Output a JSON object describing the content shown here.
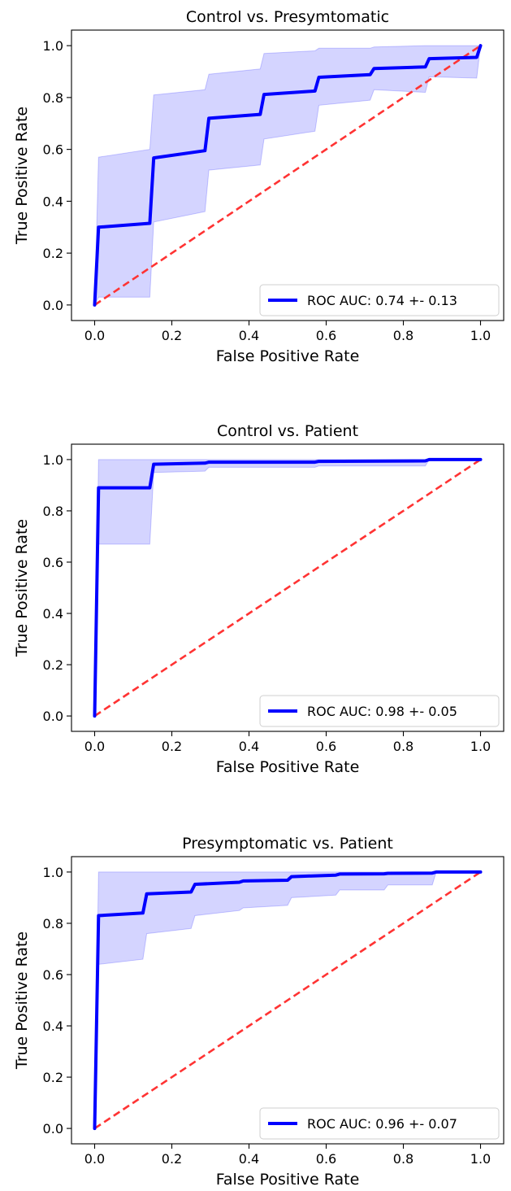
{
  "chart_data": [
    {
      "type": "line",
      "title": "Control vs. Presymtomatic",
      "xlabel": "False Positive Rate",
      "ylabel": "True Positive Rate",
      "xlim": [
        -0.06,
        1.06
      ],
      "ylim": [
        -0.06,
        1.06
      ],
      "xticks": [
        0.0,
        0.2,
        0.4,
        0.6,
        0.8,
        1.0
      ],
      "yticks": [
        0.0,
        0.2,
        0.4,
        0.6,
        0.8,
        1.0
      ],
      "tick_labels": [
        "0.0",
        "0.2",
        "0.4",
        "0.6",
        "0.8",
        "1.0"
      ],
      "legend_position": "lower-right",
      "series": [
        {
          "name": "ROC AUC: 0.74 +- 0.13",
          "color": "#0000ff",
          "x": [
            0.0,
            0.01,
            0.143,
            0.153,
            0.286,
            0.296,
            0.429,
            0.439,
            0.571,
            0.581,
            0.714,
            0.724,
            0.857,
            0.867,
            0.99,
            1.0
          ],
          "y": [
            0.0,
            0.3,
            0.315,
            0.567,
            0.595,
            0.72,
            0.735,
            0.812,
            0.825,
            0.878,
            0.888,
            0.912,
            0.918,
            0.95,
            0.955,
            1.0
          ],
          "band_upper": [
            0.0,
            0.57,
            0.6,
            0.81,
            0.83,
            0.89,
            0.91,
            0.97,
            0.98,
            0.99,
            0.99,
            0.995,
            1.0,
            1.0,
            1.0,
            1.0
          ],
          "band_lower": [
            0.0,
            0.03,
            0.03,
            0.32,
            0.36,
            0.52,
            0.54,
            0.64,
            0.67,
            0.77,
            0.79,
            0.83,
            0.82,
            0.88,
            0.875,
            1.0
          ]
        },
        {
          "name": "",
          "color": "#ff3333",
          "style": "dashed",
          "x": [
            0.0,
            1.0
          ],
          "y": [
            0.0,
            1.0
          ]
        }
      ]
    },
    {
      "type": "line",
      "title": "Control vs. Patient",
      "xlabel": "False Positive Rate",
      "ylabel": "True Positive Rate",
      "xlim": [
        -0.06,
        1.06
      ],
      "ylim": [
        -0.06,
        1.06
      ],
      "xticks": [
        0.0,
        0.2,
        0.4,
        0.6,
        0.8,
        1.0
      ],
      "yticks": [
        0.0,
        0.2,
        0.4,
        0.6,
        0.8,
        1.0
      ],
      "tick_labels": [
        "0.0",
        "0.2",
        "0.4",
        "0.6",
        "0.8",
        "1.0"
      ],
      "legend_position": "lower-right",
      "series": [
        {
          "name": "ROC AUC: 0.98 +- 0.05",
          "color": "#0000ff",
          "x": [
            0.0,
            0.01,
            0.143,
            0.153,
            0.286,
            0.296,
            0.571,
            0.581,
            0.857,
            0.867,
            1.0
          ],
          "y": [
            0.0,
            0.89,
            0.89,
            0.982,
            0.986,
            0.99,
            0.99,
            0.993,
            0.995,
            1.0,
            1.0
          ],
          "band_upper": [
            0.0,
            1.0,
            1.0,
            1.0,
            1.0,
            1.0,
            1.0,
            1.0,
            1.0,
            1.0,
            1.0
          ],
          "band_lower": [
            0.0,
            0.67,
            0.67,
            0.95,
            0.955,
            0.97,
            0.97,
            0.975,
            0.975,
            1.0,
            1.0
          ]
        },
        {
          "name": "",
          "color": "#ff3333",
          "style": "dashed",
          "x": [
            0.0,
            1.0
          ],
          "y": [
            0.0,
            1.0
          ]
        }
      ]
    },
    {
      "type": "line",
      "title": "Presymptomatic vs. Patient",
      "xlabel": "False Positive Rate",
      "ylabel": "True Positive Rate",
      "xlim": [
        -0.06,
        1.06
      ],
      "ylim": [
        -0.06,
        1.06
      ],
      "xticks": [
        0.0,
        0.2,
        0.4,
        0.6,
        0.8,
        1.0
      ],
      "yticks": [
        0.0,
        0.2,
        0.4,
        0.6,
        0.8,
        1.0
      ],
      "tick_labels": [
        "0.0",
        "0.2",
        "0.4",
        "0.6",
        "0.8",
        "1.0"
      ],
      "legend_position": "lower-right",
      "series": [
        {
          "name": "ROC AUC: 0.96 +- 0.07",
          "color": "#0000ff",
          "x": [
            0.0,
            0.01,
            0.125,
            0.135,
            0.25,
            0.26,
            0.375,
            0.385,
            0.5,
            0.51,
            0.625,
            0.635,
            0.75,
            0.76,
            0.875,
            0.885,
            1.0
          ],
          "y": [
            0.0,
            0.83,
            0.84,
            0.915,
            0.922,
            0.952,
            0.96,
            0.965,
            0.968,
            0.982,
            0.988,
            0.992,
            0.993,
            0.995,
            0.996,
            1.0,
            1.0
          ],
          "band_upper": [
            0.0,
            1.0,
            1.0,
            1.0,
            1.0,
            1.0,
            1.0,
            1.0,
            1.0,
            1.0,
            1.0,
            1.0,
            1.0,
            1.0,
            1.0,
            1.0,
            1.0
          ],
          "band_lower": [
            0.0,
            0.64,
            0.66,
            0.76,
            0.78,
            0.83,
            0.85,
            0.86,
            0.87,
            0.9,
            0.91,
            0.93,
            0.93,
            0.95,
            0.95,
            1.0,
            1.0
          ]
        },
        {
          "name": "",
          "color": "#ff3333",
          "style": "dashed",
          "x": [
            0.0,
            1.0
          ],
          "y": [
            0.0,
            1.0
          ]
        }
      ]
    }
  ]
}
